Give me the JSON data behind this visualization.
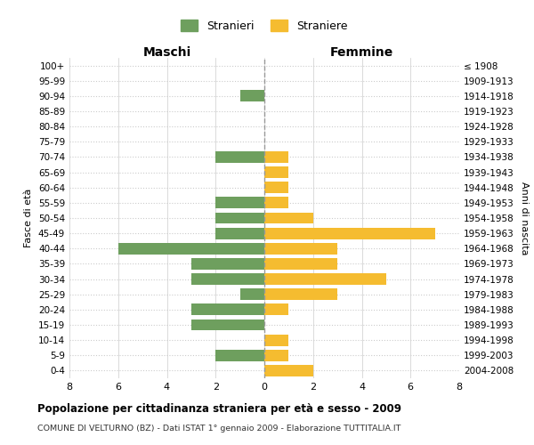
{
  "age_groups": [
    "100+",
    "95-99",
    "90-94",
    "85-89",
    "80-84",
    "75-79",
    "70-74",
    "65-69",
    "60-64",
    "55-59",
    "50-54",
    "45-49",
    "40-44",
    "35-39",
    "30-34",
    "25-29",
    "20-24",
    "15-19",
    "10-14",
    "5-9",
    "0-4"
  ],
  "birth_years": [
    "≤ 1908",
    "1909-1913",
    "1914-1918",
    "1919-1923",
    "1924-1928",
    "1929-1933",
    "1934-1938",
    "1939-1943",
    "1944-1948",
    "1949-1953",
    "1954-1958",
    "1959-1963",
    "1964-1968",
    "1969-1973",
    "1974-1978",
    "1979-1983",
    "1984-1988",
    "1989-1993",
    "1994-1998",
    "1999-2003",
    "2004-2008"
  ],
  "maschi": [
    0,
    0,
    1,
    0,
    0,
    0,
    2,
    0,
    0,
    2,
    2,
    2,
    6,
    3,
    3,
    1,
    3,
    3,
    0,
    2,
    0
  ],
  "femmine": [
    0,
    0,
    0,
    0,
    0,
    0,
    1,
    1,
    1,
    1,
    2,
    7,
    3,
    3,
    5,
    3,
    1,
    0,
    1,
    1,
    2
  ],
  "maschi_color": "#6e9f5e",
  "femmine_color": "#f5bc30",
  "grid_color": "#cccccc",
  "centerline_color": "#999999",
  "title": "Popolazione per cittadinanza straniera per età e sesso - 2009",
  "subtitle": "COMUNE DI VELTURNO (BZ) - Dati ISTAT 1° gennaio 2009 - Elaborazione TUTTITALIA.IT",
  "xlabel_left": "Maschi",
  "xlabel_right": "Femmine",
  "ylabel_left": "Fasce di età",
  "ylabel_right": "Anni di nascita",
  "legend_maschi": "Stranieri",
  "legend_femmine": "Straniere",
  "xlim": 8,
  "background_color": "#ffffff",
  "bar_height": 0.75
}
